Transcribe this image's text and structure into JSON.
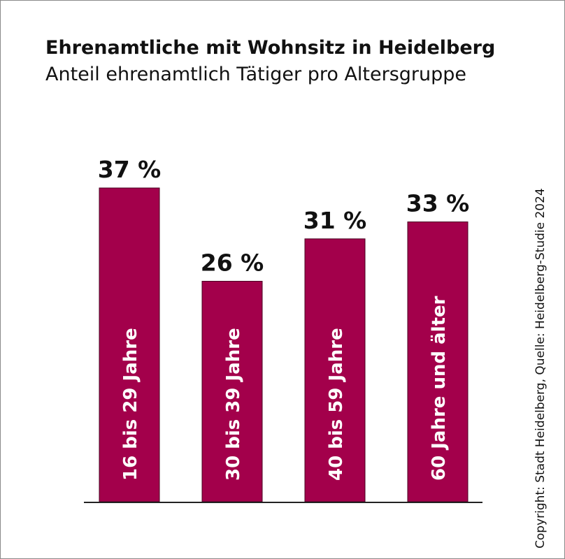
{
  "chart_data": {
    "type": "bar",
    "title": "Ehrenamtliche mit Wohnsitz in Heidelberg",
    "subtitle": "Anteil ehrenamtlich Tätiger pro Altersgruppe",
    "categories": [
      "16 bis 29 Jahre",
      "30 bis 39 Jahre",
      "40 bis 59 Jahre",
      "60 Jahre und älter"
    ],
    "values": [
      37,
      26,
      31,
      33
    ],
    "value_labels": [
      "37 %",
      "26 %",
      "31 %",
      "33 %"
    ],
    "unit": "%",
    "ylim": [
      0,
      37
    ],
    "grid": false,
    "legend": "none",
    "bar_color": "#a3004b"
  },
  "copyright": "Copyright: Stadt Heidelberg, Quelle: Heidelberg-Studie 2024"
}
